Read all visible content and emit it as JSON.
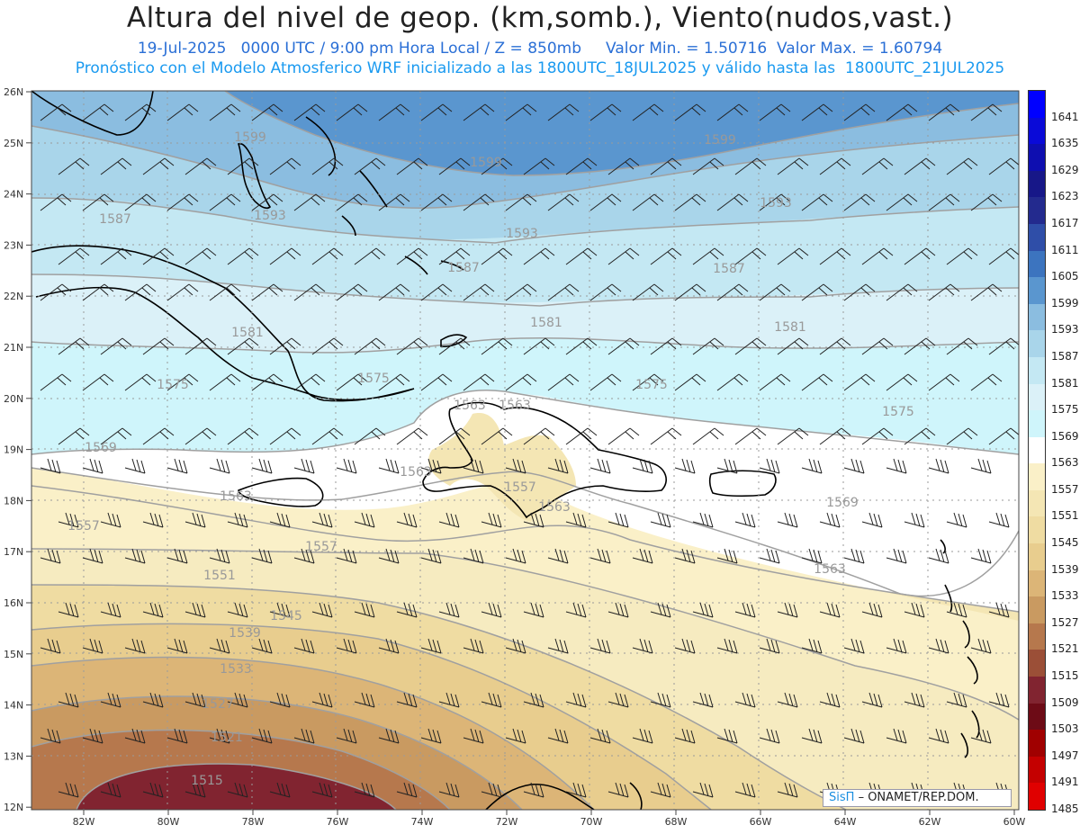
{
  "header": {
    "title": "Altura del nivel de geop. (km,somb.), Viento(nudos,vast.)",
    "line1": "19-Jul-2025   0000 UTC / 9:00 pm Hora Local / Z = 850mb     Valor Min. = 1.50716  Valor Max. = 1.60794",
    "line2": "Pronóstico con el Modelo Atmosferico WRF inicializado a las 1800UTC_18JUL2025 y válido hasta las  1800UTC_21JUL2025"
  },
  "axes": {
    "lat_labels": [
      "26N",
      "25N",
      "24N",
      "23N",
      "22N",
      "21N",
      "20N",
      "19N",
      "18N",
      "17N",
      "16N",
      "15N",
      "14N",
      "13N",
      "12N"
    ],
    "lon_labels": [
      "82W",
      "80W",
      "78W",
      "76W",
      "74W",
      "72W",
      "70W",
      "68W",
      "66W",
      "64W",
      "62W",
      "60W"
    ]
  },
  "colorbar": {
    "labels": [
      "1641",
      "1635",
      "1629",
      "1623",
      "1617",
      "1611",
      "1605",
      "1599",
      "1593",
      "1587",
      "1581",
      "1575",
      "1569",
      "1563",
      "1557",
      "1551",
      "1545",
      "1539",
      "1533",
      "1527",
      "1521",
      "1515",
      "1509",
      "1503",
      "1497",
      "1491",
      "1485"
    ],
    "colors": [
      "#0000ff",
      "#0a0ad8",
      "#0e0eb0",
      "#171788",
      "#232a8e",
      "#2f4ea8",
      "#3c74bf",
      "#5a96cf",
      "#8bbde0",
      "#a9d5ea",
      "#c4e8f3",
      "#dbf1f8",
      "#cff5fb",
      "#ffffff",
      "#faf0c8",
      "#f4e6b4",
      "#efdca2",
      "#e8cd8e",
      "#dcb577",
      "#c99a61",
      "#b6784d",
      "#9b4f37",
      "#812430",
      "#6d0b16",
      "#a00000",
      "#c40000",
      "#e00000"
    ]
  },
  "contours": {
    "labels": [
      "1599",
      "1599",
      "1599",
      "1593",
      "1593",
      "1593",
      "1587",
      "1587",
      "1587",
      "1581",
      "1581",
      "1581",
      "1575",
      "1575",
      "1575",
      "1575",
      "1569",
      "1569",
      "1563",
      "1563",
      "1563",
      "1563",
      "1563",
      "1563",
      "1557",
      "1557",
      "1557",
      "1551",
      "1545",
      "1539",
      "1533",
      "1527",
      "1521",
      "1515"
    ]
  },
  "map": {
    "colors": {
      "land_outline": "#000000",
      "grid": "#9a9a9a",
      "contour": "#a0a0a0",
      "barb": "#222222",
      "frame": "#444444"
    }
  },
  "logo": {
    "sis": "SisΠ",
    "rest": "– ONAMET/REP.DOM."
  }
}
